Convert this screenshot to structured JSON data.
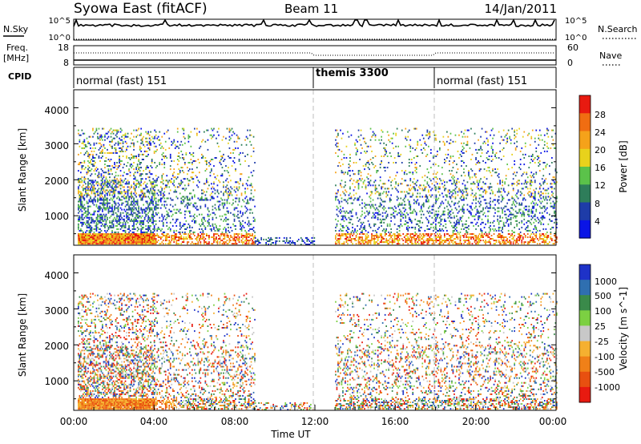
{
  "header": {
    "title": "Syowa East (fitACF)",
    "beam": "Beam 11",
    "date": "14/Jan/2011"
  },
  "top_panels": {
    "nsky_label": "N.Sky",
    "nsearch_label": "N.Search",
    "nsky_ticks": [
      "10^5",
      "10^0"
    ],
    "nsearch_ticks": [
      "10^5",
      "10^0"
    ],
    "freq_label": "Freq.",
    "freq_unit": "[MHz]",
    "freq_ticks": [
      "18",
      "8"
    ],
    "nave_label": "Nave",
    "nave_ticks": [
      "60",
      "0"
    ],
    "cpid_label": "CPID",
    "cpid_segments": [
      {
        "label": "normal (fast) 151",
        "start_hour": 0,
        "end_hour": 12
      },
      {
        "label": "themis 3300",
        "start_hour": 12,
        "end_hour": 18
      },
      {
        "label": "normal (fast) 151",
        "start_hour": 18,
        "end_hour": 24
      }
    ]
  },
  "chart_data": [
    {
      "type": "heatmap",
      "panel": "power",
      "ylabel": "Slant Range [km]",
      "y_ticks": [
        "1000",
        "2000",
        "3000",
        "4000"
      ],
      "ylim": [
        180,
        4500
      ],
      "xlim": [
        0,
        24
      ],
      "colorbar_label": "Power [dB]",
      "colorbar_ticks": [
        "4",
        "8",
        "12",
        "16",
        "20",
        "24",
        "28"
      ],
      "colors": [
        "#0a14e6",
        "#1e3ca8",
        "#2e7d5a",
        "#5bc24a",
        "#e8d21c",
        "#f5a21a",
        "#f06d12",
        "#e81a10"
      ],
      "activity": [
        {
          "start": 0.2,
          "end": 4.0,
          "rmin": 200,
          "rmax": 3400,
          "level": "strong"
        },
        {
          "start": 4.0,
          "end": 9.0,
          "rmin": 200,
          "rmax": 3400,
          "level": "medium"
        },
        {
          "start": 9.0,
          "end": 12.0,
          "rmin": 180,
          "rmax": 400,
          "level": "weak"
        },
        {
          "start": 13.0,
          "end": 18.0,
          "rmin": 200,
          "rmax": 3400,
          "level": "medium"
        },
        {
          "start": 18.0,
          "end": 24.0,
          "rmin": 200,
          "rmax": 3400,
          "level": "medium"
        }
      ]
    },
    {
      "type": "heatmap",
      "panel": "velocity",
      "ylabel": "Slant Range [km]",
      "y_ticks": [
        "1000",
        "2000",
        "3000",
        "4000"
      ],
      "ylim": [
        180,
        4500
      ],
      "xlim": [
        0,
        24
      ],
      "x_ticks": [
        "00:00",
        "04:00",
        "08:00",
        "12:00",
        "16:00",
        "20:00",
        "00:00"
      ],
      "xlabel": "Time UT",
      "colorbar_label": "Velocity [m s^-1]",
      "colorbar_ticks": [
        "1000",
        "500",
        "100",
        "25",
        "-25",
        "-100",
        "-500",
        "-1000"
      ],
      "colors": [
        "#1e32c8",
        "#2f6fb0",
        "#3a8a4a",
        "#7cd042",
        "#c8c8c8",
        "#f5b030",
        "#f08018",
        "#e85010",
        "#e81a10"
      ],
      "activity": [
        {
          "start": 0.2,
          "end": 4.0,
          "rmin": 200,
          "rmax": 3400,
          "level": "strong"
        },
        {
          "start": 4.0,
          "end": 9.0,
          "rmin": 200,
          "rmax": 3400,
          "level": "medium"
        },
        {
          "start": 9.0,
          "end": 12.0,
          "rmin": 180,
          "rmax": 400,
          "level": "weak"
        },
        {
          "start": 13.0,
          "end": 18.0,
          "rmin": 200,
          "rmax": 3400,
          "level": "medium"
        },
        {
          "start": 18.0,
          "end": 24.0,
          "rmin": 200,
          "rmax": 3400,
          "level": "medium"
        }
      ]
    }
  ]
}
